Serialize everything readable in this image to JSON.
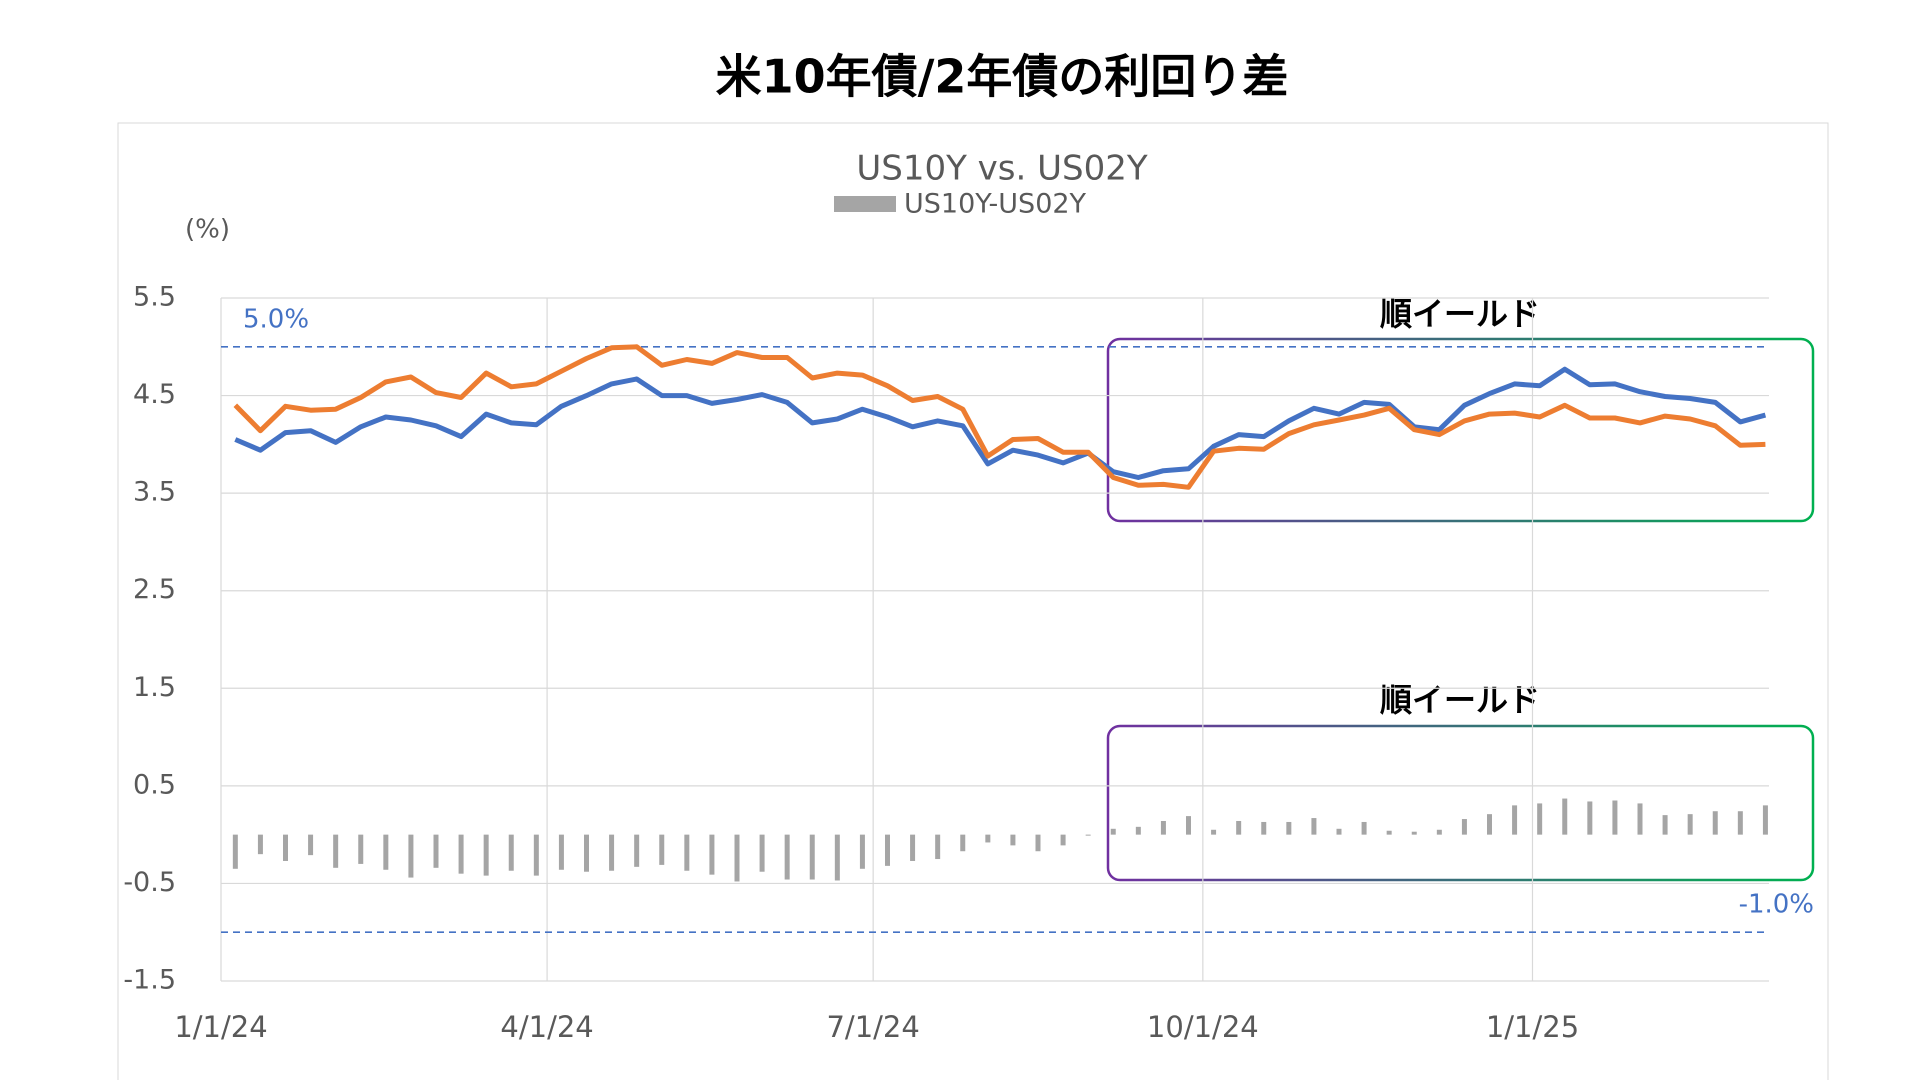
{
  "chart_data": {
    "type": "combo",
    "title": "米10年債/2年債の利回り差",
    "subtitle": "US10Y vs. US02Y",
    "y_label": "(%)",
    "x": [
      "2024-01-05",
      "2024-01-12",
      "2024-01-19",
      "2024-01-26",
      "2024-02-02",
      "2024-02-09",
      "2024-02-16",
      "2024-02-23",
      "2024-03-01",
      "2024-03-08",
      "2024-03-15",
      "2024-03-22",
      "2024-03-29",
      "2024-04-05",
      "2024-04-12",
      "2024-04-19",
      "2024-04-26",
      "2024-05-03",
      "2024-05-10",
      "2024-05-17",
      "2024-05-24",
      "2024-05-31",
      "2024-06-07",
      "2024-06-14",
      "2024-06-21",
      "2024-06-28",
      "2024-07-05",
      "2024-07-12",
      "2024-07-19",
      "2024-07-26",
      "2024-08-02",
      "2024-08-09",
      "2024-08-16",
      "2024-08-23",
      "2024-08-30",
      "2024-09-06",
      "2024-09-13",
      "2024-09-20",
      "2024-09-27",
      "2024-10-04",
      "2024-10-11",
      "2024-10-18",
      "2024-10-25",
      "2024-11-01",
      "2024-11-08",
      "2024-11-15",
      "2024-11-22",
      "2024-11-29",
      "2024-12-06",
      "2024-12-13",
      "2024-12-20",
      "2024-12-27",
      "2025-01-03",
      "2025-01-10",
      "2025-01-17",
      "2025-01-24",
      "2025-01-31",
      "2025-02-07",
      "2025-02-14",
      "2025-02-21",
      "2025-02-28",
      "2025-03-07"
    ],
    "series": [
      {
        "type": "line",
        "color": "#4472c4",
        "values": [
          4.05,
          3.94,
          4.12,
          4.14,
          4.02,
          4.18,
          4.28,
          4.25,
          4.19,
          4.08,
          4.31,
          4.22,
          4.2,
          4.39,
          4.5,
          4.62,
          4.67,
          4.5,
          4.5,
          4.42,
          4.46,
          4.51,
          4.43,
          4.22,
          4.26,
          4.36,
          4.28,
          4.18,
          4.24,
          4.19,
          3.8,
          3.94,
          3.89,
          3.81,
          3.91,
          3.72,
          3.66,
          3.73,
          3.75,
          3.98,
          4.1,
          4.08,
          4.24,
          4.37,
          4.31,
          4.43,
          4.41,
          4.18,
          4.15,
          4.4,
          4.52,
          4.62,
          4.6,
          4.77,
          4.61,
          4.62,
          4.54,
          4.49,
          4.47,
          4.43,
          4.23,
          4.3
        ]
      },
      {
        "type": "line",
        "color": "#ed7d31",
        "values": [
          4.4,
          4.14,
          4.39,
          4.35,
          4.36,
          4.48,
          4.64,
          4.69,
          4.53,
          4.48,
          4.73,
          4.59,
          4.62,
          4.75,
          4.88,
          4.99,
          5.0,
          4.81,
          4.87,
          4.83,
          4.94,
          4.89,
          4.89,
          4.68,
          4.73,
          4.71,
          4.6,
          4.45,
          4.49,
          4.36,
          3.88,
          4.05,
          4.06,
          3.92,
          3.92,
          3.66,
          3.58,
          3.59,
          3.56,
          3.93,
          3.96,
          3.95,
          4.11,
          4.2,
          4.25,
          4.3,
          4.37,
          4.15,
          4.1,
          4.24,
          4.31,
          4.32,
          4.28,
          4.4,
          4.27,
          4.27,
          4.22,
          4.29,
          4.26,
          4.19,
          3.99,
          4.0
        ]
      },
      {
        "type": "bar",
        "name": "US10Y-US02Y",
        "color": "#a5a5a5",
        "values": [
          -0.35,
          -0.2,
          -0.27,
          -0.21,
          -0.34,
          -0.3,
          -0.36,
          -0.44,
          -0.34,
          -0.4,
          -0.42,
          -0.37,
          -0.42,
          -0.36,
          -0.38,
          -0.37,
          -0.33,
          -0.31,
          -0.37,
          -0.41,
          -0.48,
          -0.38,
          -0.46,
          -0.46,
          -0.47,
          -0.35,
          -0.32,
          -0.27,
          -0.25,
          -0.17,
          -0.08,
          -0.11,
          -0.17,
          -0.11,
          -0.01,
          0.06,
          0.08,
          0.14,
          0.19,
          0.05,
          0.14,
          0.13,
          0.13,
          0.17,
          0.06,
          0.13,
          0.04,
          0.03,
          0.05,
          0.16,
          0.21,
          0.3,
          0.32,
          0.37,
          0.34,
          0.35,
          0.32,
          0.2,
          0.21,
          0.24,
          0.24,
          0.3
        ]
      }
    ],
    "xlim": [
      "2024-01-01",
      "2025-03-08"
    ],
    "xticks": [
      {
        "value": "2024-01-01",
        "label": "1/1/24"
      },
      {
        "value": "2024-04-01",
        "label": "4/1/24"
      },
      {
        "value": "2024-07-01",
        "label": "7/1/24"
      },
      {
        "value": "2024-10-01",
        "label": "10/1/24"
      },
      {
        "value": "2025-01-01",
        "label": "1/1/25"
      }
    ],
    "ylim": [
      -1.5,
      5.5
    ],
    "yticks": [
      5.5,
      4.5,
      3.5,
      2.5,
      1.5,
      0.5,
      -0.5,
      -1.5
    ],
    "grid": true,
    "reference_lines": [
      {
        "value": 5.0,
        "label": "5.0%",
        "color": "#4472c4"
      },
      {
        "value": -1.0,
        "label": "-1.0%",
        "color": "#4472c4"
      }
    ],
    "annotations": [
      "順イールド",
      "順イールド"
    ]
  }
}
